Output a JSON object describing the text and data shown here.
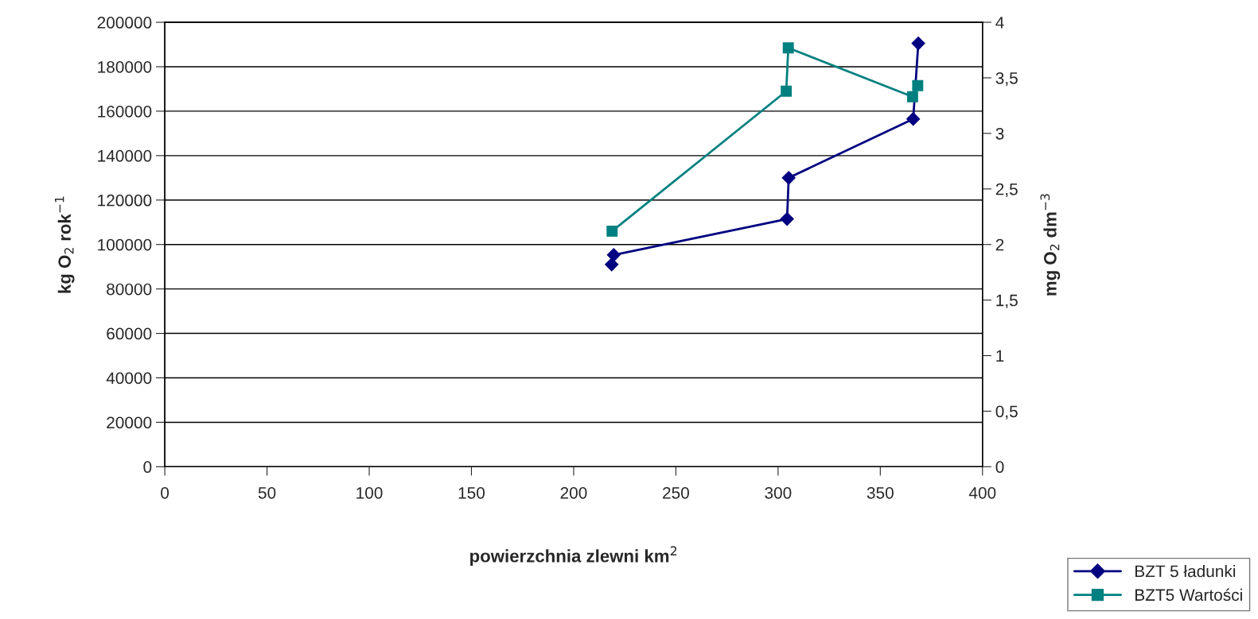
{
  "chart_data": {
    "type": "line",
    "xlabel": "powierzchnia zlewni km$^{2}$",
    "ylabel": "kg O$_{2}$ rok$^{−1}$",
    "y2label": "mg O$_{2}$ dm$^{−3}$",
    "series": [
      {
        "name": "BZT 5 ładunki",
        "color": "#000080",
        "marker": "diamond",
        "x": [
          218.6,
          219.6,
          304.4,
          305.2,
          366.1,
          368.6
        ],
        "values": [
          91000,
          95300,
          111500,
          130000,
          156500,
          190500
        ]
      },
      {
        "name": "BZT5 Wartości",
        "color": "#008080",
        "marker": "square",
        "axis": "y2",
        "x": [
          218.8,
          304.0,
          305.0,
          365.8,
          368.3
        ],
        "values": [
          2.12,
          3.38,
          3.77,
          3.33,
          3.43
        ]
      }
    ],
    "xlim": [
      0,
      400
    ],
    "xticks": [
      0,
      50,
      100,
      150,
      200,
      250,
      300,
      350,
      400
    ],
    "ylim": [
      0,
      200000
    ],
    "yticks": [
      0,
      20000,
      40000,
      60000,
      80000,
      100000,
      120000,
      140000,
      160000,
      180000,
      200000
    ],
    "y2lim": [
      0,
      4
    ],
    "y2ticks": [
      0,
      {
        "value": 0.5,
        "label": "0,5"
      },
      1,
      {
        "value": 1.5,
        "label": "1,5"
      },
      2,
      {
        "value": 2.5,
        "label": "2,5"
      },
      3,
      {
        "value": 3.5,
        "label": "3,5"
      },
      4
    ],
    "grid": "y",
    "legend": "bottom right",
    "line_style": "solid"
  }
}
